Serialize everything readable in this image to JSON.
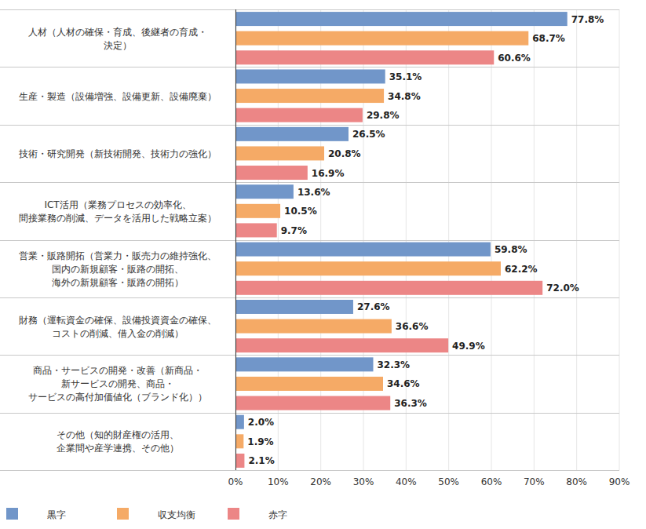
{
  "chart_data": {
    "type": "bar",
    "orientation": "horizontal",
    "categories": [
      "人材（人材の確保・育成、後継者の育成・\n決定）",
      "生産・製造（設備増強、設備更新、設備廃棄）",
      "技術・研究開発（新技術開発、技術力の強化）",
      "ICT活用（業務プロセスの効率化、\n間接業務の削減、データを活用した戦略立案）",
      "営業・販路開拓（営業力・販売力の維持強化、\n国内の新規顧客・販路の開拓、\n海外の新規顧客・販路の開拓）",
      "財務（運転資金の確保、設備投資資金の確保、\nコストの削減、借入金の削減）",
      "商品・サービスの開発・改善（新商品・\n新サービスの開発、商品・\nサービスの高付加価値化（ブランド化））",
      "その他（知的財産権の活用、\n企業間や産学連携、その他）"
    ],
    "series": [
      {
        "name": "黒字",
        "color": "#7196c9",
        "values": [
          77.8,
          35.1,
          26.5,
          13.6,
          59.8,
          27.6,
          32.3,
          2.0
        ],
        "value_labels": [
          "77.8%",
          "35.1%",
          "26.5%",
          "13.6%",
          "59.8%",
          "27.6%",
          "32.3%",
          "2.0%"
        ]
      },
      {
        "name": "収支均衡",
        "color": "#f5aa66",
        "values": [
          68.7,
          34.8,
          20.8,
          10.5,
          62.2,
          36.6,
          34.6,
          1.9
        ],
        "value_labels": [
          "68.7%",
          "34.8%",
          "20.8%",
          "10.5%",
          "62.2%",
          "36.6%",
          "34.6%",
          "1.9%"
        ]
      },
      {
        "name": "赤字",
        "color": "#ec8686",
        "values": [
          60.6,
          29.8,
          16.9,
          9.7,
          72.0,
          49.9,
          36.3,
          2.1
        ],
        "value_labels": [
          "60.6%",
          "29.8%",
          "16.9%",
          "9.7%",
          "72.0%",
          "49.9%",
          "36.3%",
          "2.1%"
        ]
      }
    ],
    "xlim": [
      0,
      90
    ],
    "xticks": [
      {
        "value": 0,
        "label": "0%"
      },
      {
        "value": 10,
        "label": "10%"
      },
      {
        "value": 20,
        "label": "20%"
      },
      {
        "value": 30,
        "label": "30%"
      },
      {
        "value": 40,
        "label": "40%"
      },
      {
        "value": 50,
        "label": "50%"
      },
      {
        "value": 60,
        "label": "60%"
      },
      {
        "value": 70,
        "label": "70%"
      },
      {
        "value": 80,
        "label": "80%"
      },
      {
        "value": 90,
        "label": "90%"
      }
    ],
    "grid": true,
    "data_labels": true,
    "legend": "bottom-left"
  }
}
